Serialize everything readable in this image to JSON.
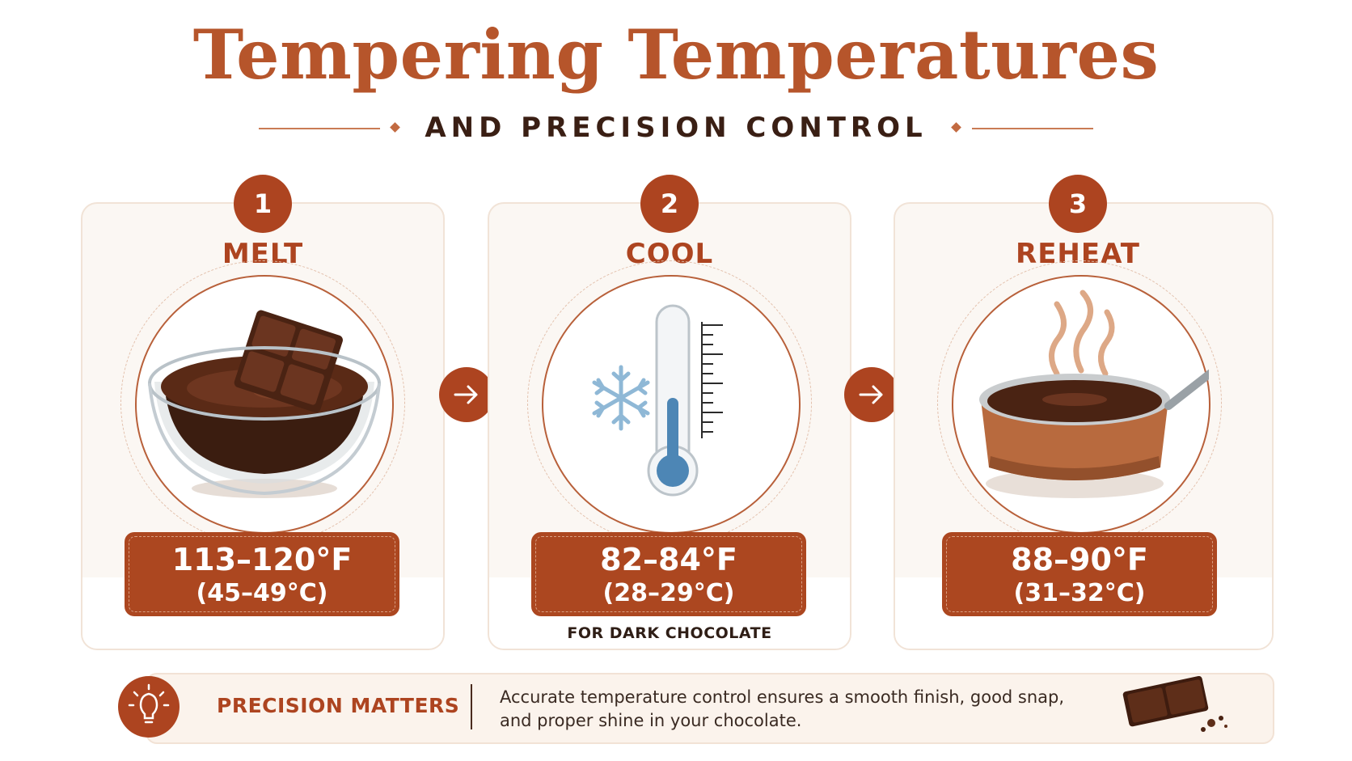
{
  "header": {
    "title": "Tempering Temperatures",
    "subtitle": "AND PRECISION CONTROL"
  },
  "steps": [
    {
      "number": "1",
      "label": "MELT",
      "icon": "chocolate-bowl-icon",
      "temp_f": "113–120°F",
      "temp_c": "(45–49°C)",
      "note": ""
    },
    {
      "number": "2",
      "label": "COOL",
      "icon": "thermometer-snowflake-icon",
      "temp_f": "82–84°F",
      "temp_c": "(28–29°C)",
      "note": "FOR DARK CHOCOLATE"
    },
    {
      "number": "3",
      "label": "REHEAT",
      "icon": "steaming-pan-icon",
      "temp_f": "88–90°F",
      "temp_c": "(31–32°C)",
      "note": ""
    }
  ],
  "footer": {
    "icon": "lightbulb-icon",
    "title": "PRECISION MATTERS",
    "text": "Accurate temperature control ensures a smooth finish, good snap, and proper shine in your chocolate.",
    "decoration_icon": "chocolate-pieces-icon"
  },
  "colors": {
    "accent": "#ad4420",
    "title": "#b6552b",
    "card_bg": "#fbf7f3",
    "text_dark": "#3a1f14"
  }
}
